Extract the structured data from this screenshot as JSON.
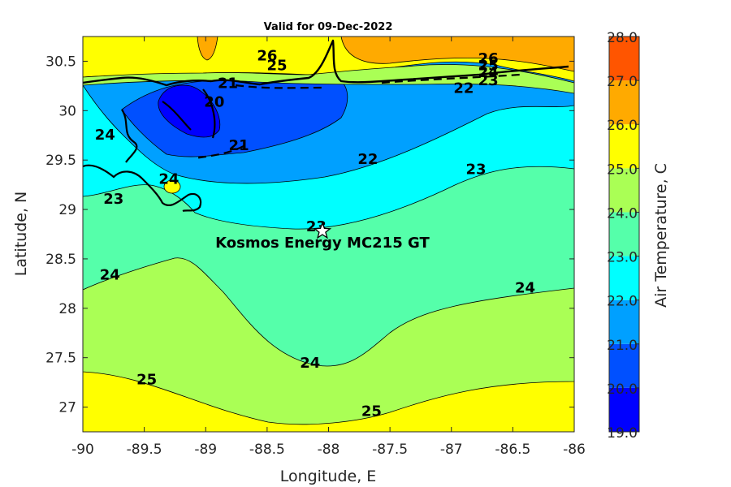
{
  "chart_data": {
    "type": "contour",
    "title": "Valid for 09-Dec-2022",
    "xlabel": "Longitude, E",
    "ylabel": "Latitude, N",
    "xlim": [
      -90,
      -86
    ],
    "ylim": [
      26.75,
      30.75
    ],
    "xticks": [
      "-90",
      "-89.5",
      "-89",
      "-88.5",
      "-88",
      "-87.5",
      "-87",
      "-86.5",
      "-86"
    ],
    "yticks": [
      "27",
      "27.5",
      "28",
      "28.5",
      "29",
      "29.5",
      "30",
      "30.5"
    ],
    "colorbar": {
      "label": "Air Temperature, C",
      "range": [
        19,
        28
      ],
      "tick_labels": [
        "19.0",
        "20.0",
        "21.0",
        "22.0",
        "23.0",
        "24.0",
        "25.0",
        "26.0",
        "27.0",
        "28.0"
      ],
      "colors": [
        "#0000ff",
        "#0050ff",
        "#00a0ff",
        "#00ffff",
        "#55ffaa",
        "#aaff55",
        "#ffff00",
        "#ffaa00",
        "#ff5500"
      ]
    },
    "contour_labels": [
      {
        "text": "21",
        "lon": -88.73,
        "lat": 29.64
      },
      {
        "text": "20",
        "lon": -88.93,
        "lat": 30.08
      },
      {
        "text": "21",
        "lon": -88.82,
        "lat": 30.27
      },
      {
        "text": "22",
        "lon": -87.68,
        "lat": 29.5
      },
      {
        "text": "22",
        "lon": -86.9,
        "lat": 30.22
      },
      {
        "text": "23",
        "lon": -89.75,
        "lat": 29.1
      },
      {
        "text": "23",
        "lon": -88.1,
        "lat": 28.82
      },
      {
        "text": "23",
        "lon": -86.8,
        "lat": 29.4
      },
      {
        "text": "24",
        "lon": -89.78,
        "lat": 28.33
      },
      {
        "text": "24",
        "lon": -88.15,
        "lat": 27.44
      },
      {
        "text": "24",
        "lon": -86.4,
        "lat": 28.2
      },
      {
        "text": "25",
        "lon": -89.48,
        "lat": 27.27
      },
      {
        "text": "25",
        "lon": -87.65,
        "lat": 26.95
      },
      {
        "text": "25",
        "lon": -88.42,
        "lat": 30.45
      },
      {
        "text": "26",
        "lon": -88.5,
        "lat": 30.55
      },
      {
        "text": "26",
        "lon": -86.7,
        "lat": 30.52
      },
      {
        "text": "25",
        "lon": -86.7,
        "lat": 30.45
      },
      {
        "text": "24",
        "lon": -86.7,
        "lat": 30.38
      },
      {
        "text": "23",
        "lon": -86.7,
        "lat": 30.3
      },
      {
        "text": "24",
        "lon": -89.82,
        "lat": 29.75
      },
      {
        "text": "24",
        "lon": -89.3,
        "lat": 29.3
      }
    ],
    "station": {
      "name": "Kosmos Energy MC215 GT",
      "lon": -88.05,
      "lat": 28.78
    }
  }
}
